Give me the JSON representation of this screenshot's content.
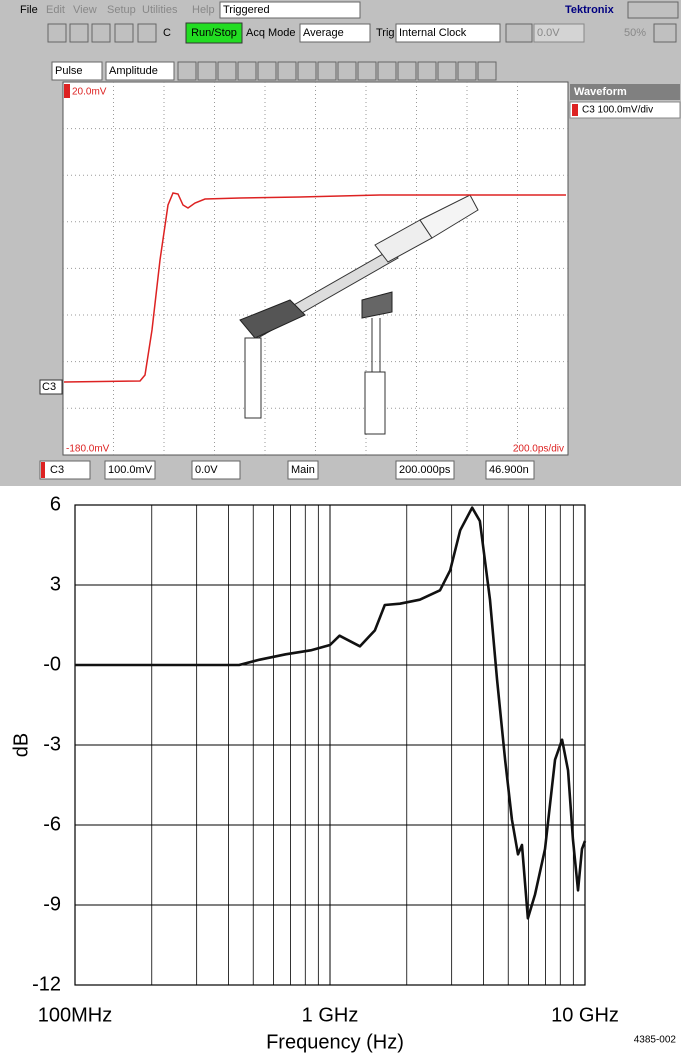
{
  "screen": {
    "menu": [
      "File",
      "Edit",
      "View",
      "Setup",
      "Utilities",
      "Help"
    ],
    "status": "Triggered",
    "brand": "Tektronix",
    "toolbar": {
      "channel": "C",
      "run": "Run/Stop",
      "acq_label": "Acq Mode",
      "acq_value": "Average",
      "trig_label": "Trig",
      "trig_value": "Internal Clock",
      "level": "0.0V",
      "percent": "50%"
    },
    "toolbar2": {
      "measure": "Pulse",
      "param": "Amplitude"
    },
    "graticule": {
      "top_label": "20.0mV",
      "bottom_label": "-180.0mV",
      "timebase": "200.0ps/div",
      "channel_marker": "C3"
    },
    "panel": {
      "header": "Waveform",
      "entry": "C3 100.0mV/div"
    },
    "bottom_bar": {
      "channel": "C3",
      "scale": "100.0mV",
      "offset": "0.0V",
      "view": "Main",
      "time": "200.000ps",
      "position": "46.900n"
    }
  },
  "chart_data": {
    "type": "line",
    "y_label": "dB",
    "x_label": "Frequency (Hz)",
    "figure_id": "4385-002",
    "log_x": true,
    "grid": true,
    "minor_grid": true,
    "color": "#111111",
    "xlim": [
      100000000,
      10000000000
    ],
    "xticks": [
      {
        "value": 100000000,
        "label": "100MHz"
      },
      {
        "value": 1000000000,
        "label": "1 GHz"
      },
      {
        "value": 10000000000,
        "label": "10 GHz"
      }
    ],
    "ylim": [
      -12,
      6
    ],
    "yticks": [
      6,
      3,
      {
        "value": 0,
        "label": "-0"
      },
      -3,
      -6,
      -9,
      -12
    ],
    "x": [
      100000000,
      440000000,
      530000000,
      670000000,
      840000000,
      1000000000,
      1090000000,
      1310000000,
      1500000000,
      1640000000,
      1880000000,
      2250000000,
      2700000000,
      2960000000,
      3240000000,
      3610000000,
      3870000000,
      4240000000,
      4520000000,
      4860000000,
      5170000000,
      5460000000,
      5660000000,
      5970000000,
      6370000000,
      6970000000,
      7630000000,
      8130000000,
      8580000000,
      8970000000,
      9390000000,
      9730000000,
      10000000000
    ],
    "values": [
      0,
      0,
      0.2,
      0.4,
      0.55,
      0.75,
      1.1,
      0.7,
      1.3,
      2.25,
      2.3,
      2.45,
      2.8,
      3.55,
      5.05,
      5.9,
      5.4,
      2.45,
      -0.55,
      -3.55,
      -5.8,
      -7.1,
      -6.75,
      -9.5,
      -8.6,
      -6.9,
      -3.55,
      -2.8,
      -3.95,
      -6.55,
      -8.45,
      -6.9,
      -6.6
    ]
  }
}
